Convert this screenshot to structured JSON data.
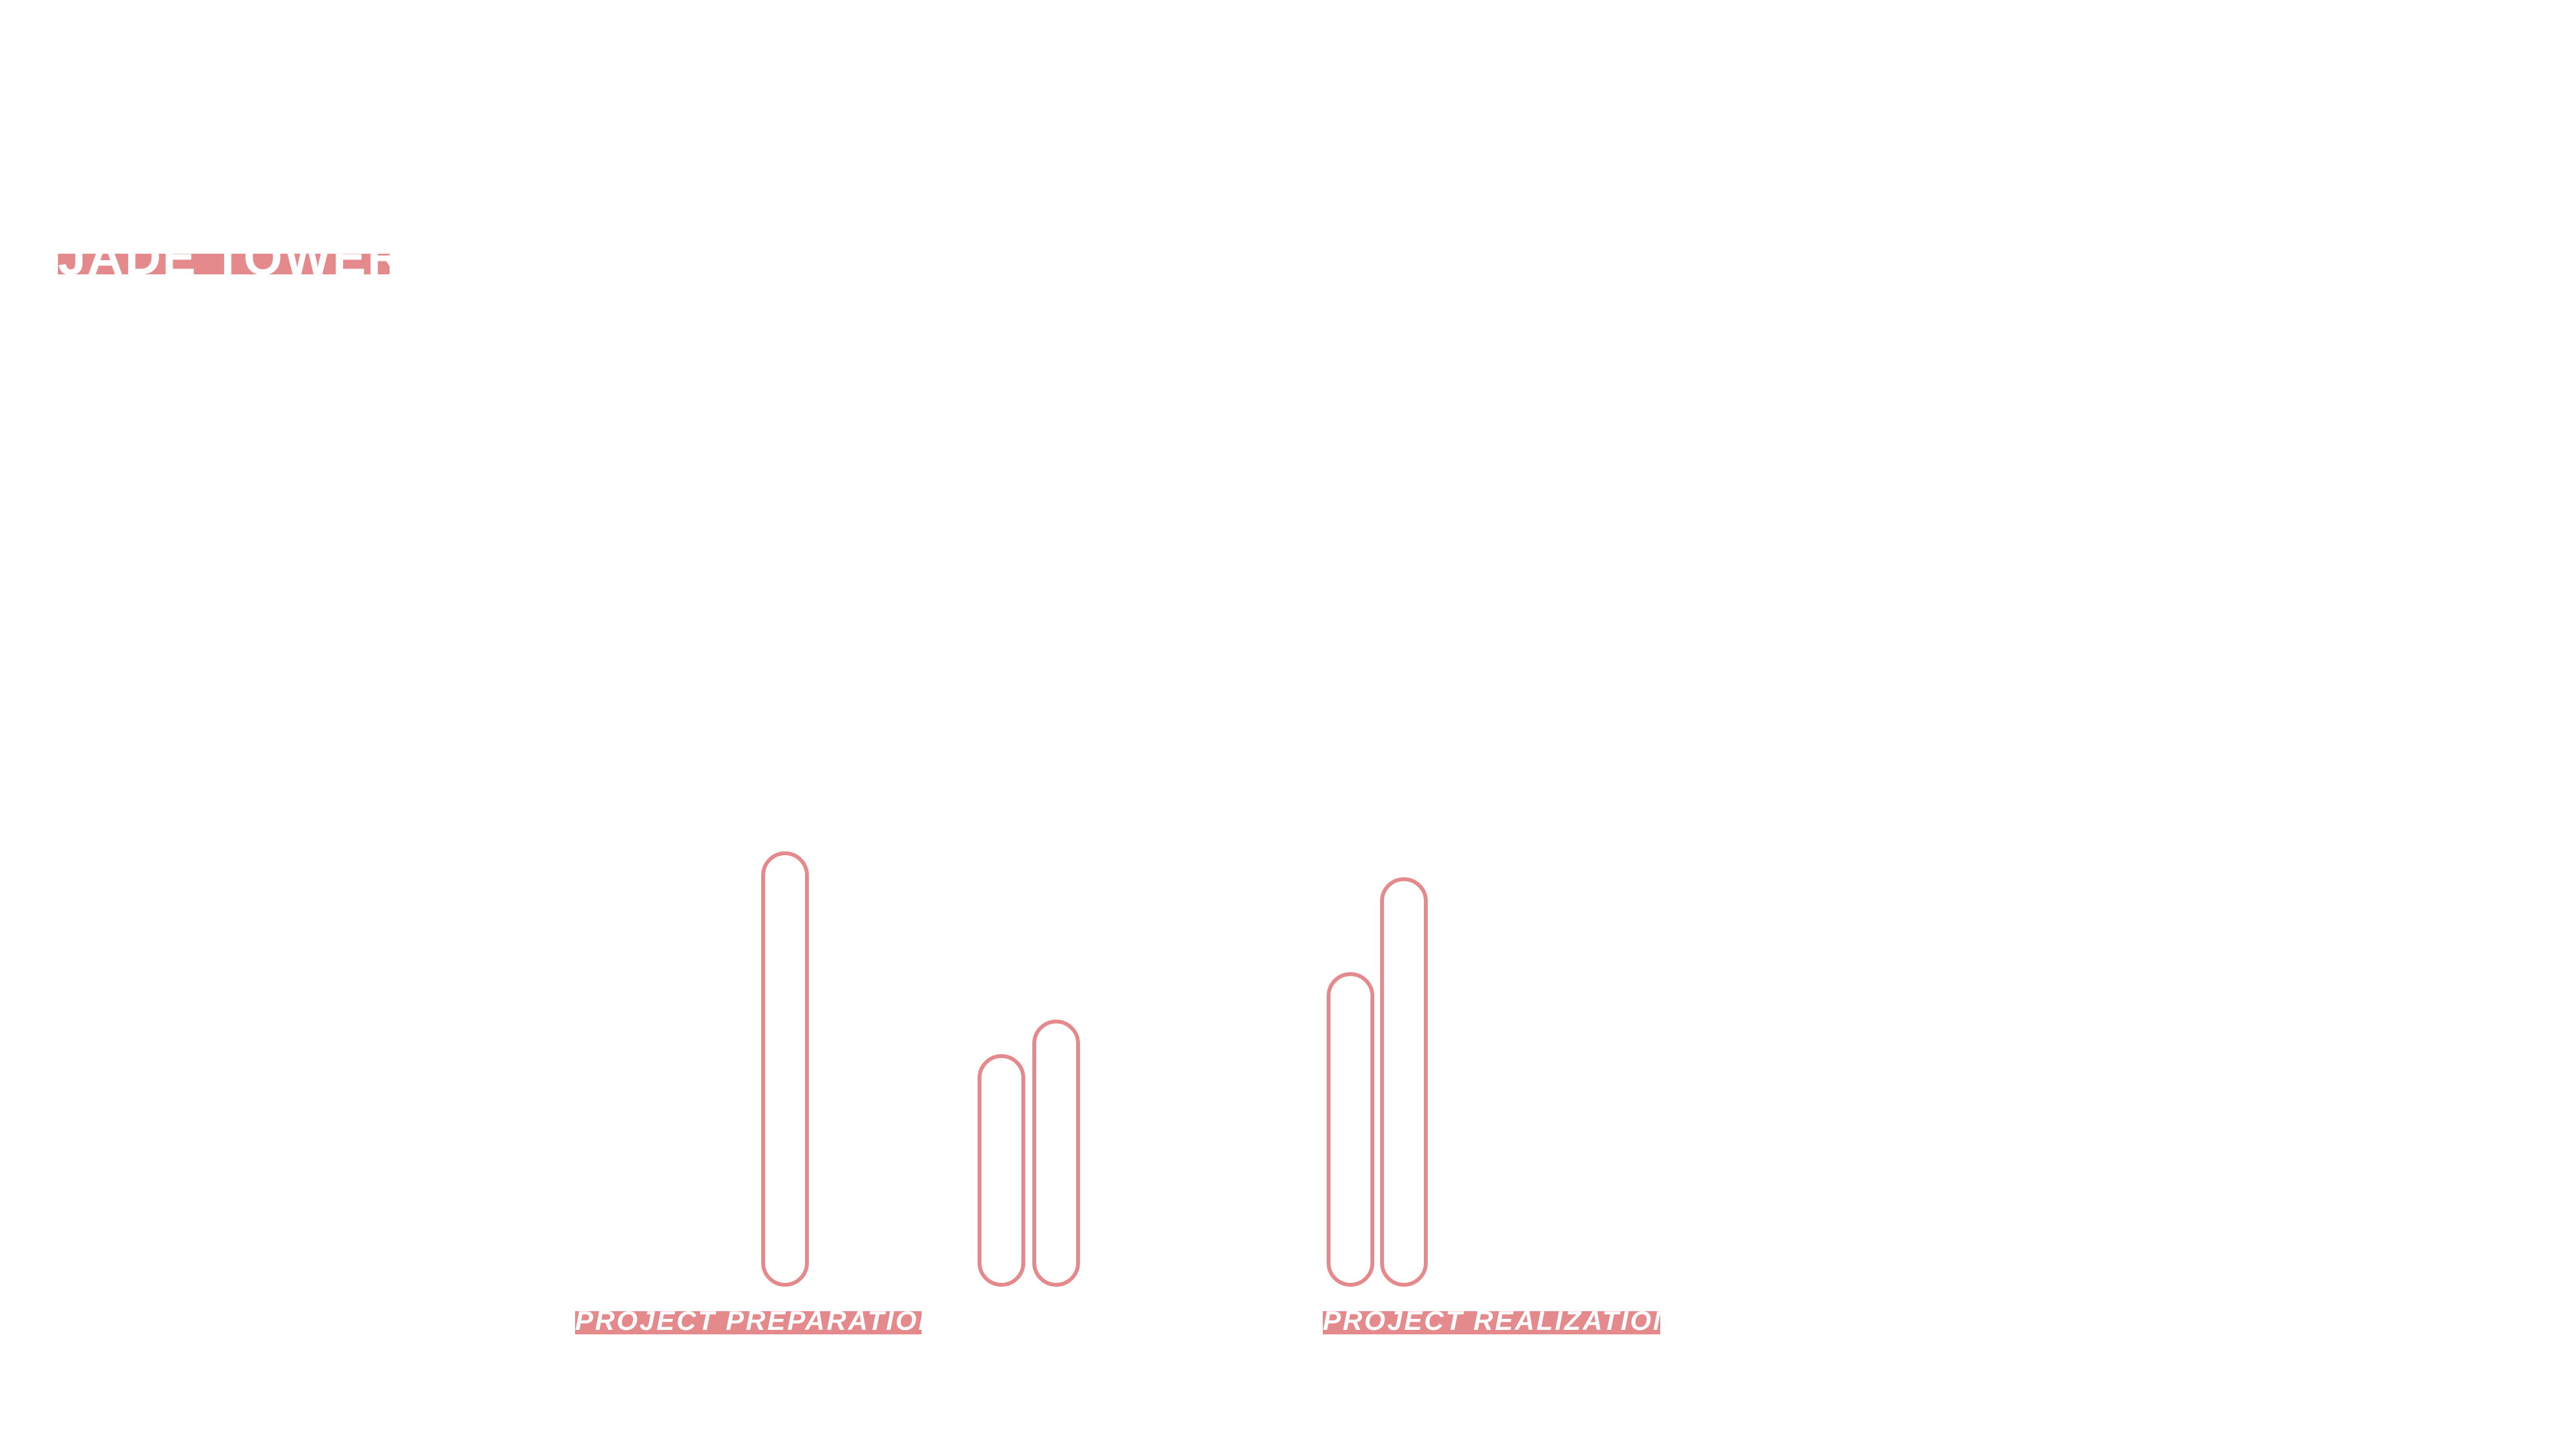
{
  "title": "JADE TOWER",
  "colors": {
    "accent": "#e58a8c",
    "background": "#ffffff",
    "label_text": "#ffffff"
  },
  "chart_data": {
    "type": "bar",
    "style": "rounded outline bars, no axes, no gridlines, no legend",
    "groups": [
      {
        "label": "PROJECT PREPARATION",
        "values": [
          1.0,
          0.53,
          0.61
        ]
      },
      {
        "label": "PROJECT REALIZATION",
        "values": [
          0.72,
          0.94
        ]
      }
    ],
    "ylim": [
      0,
      1
    ],
    "grid": false,
    "legend": "none"
  }
}
